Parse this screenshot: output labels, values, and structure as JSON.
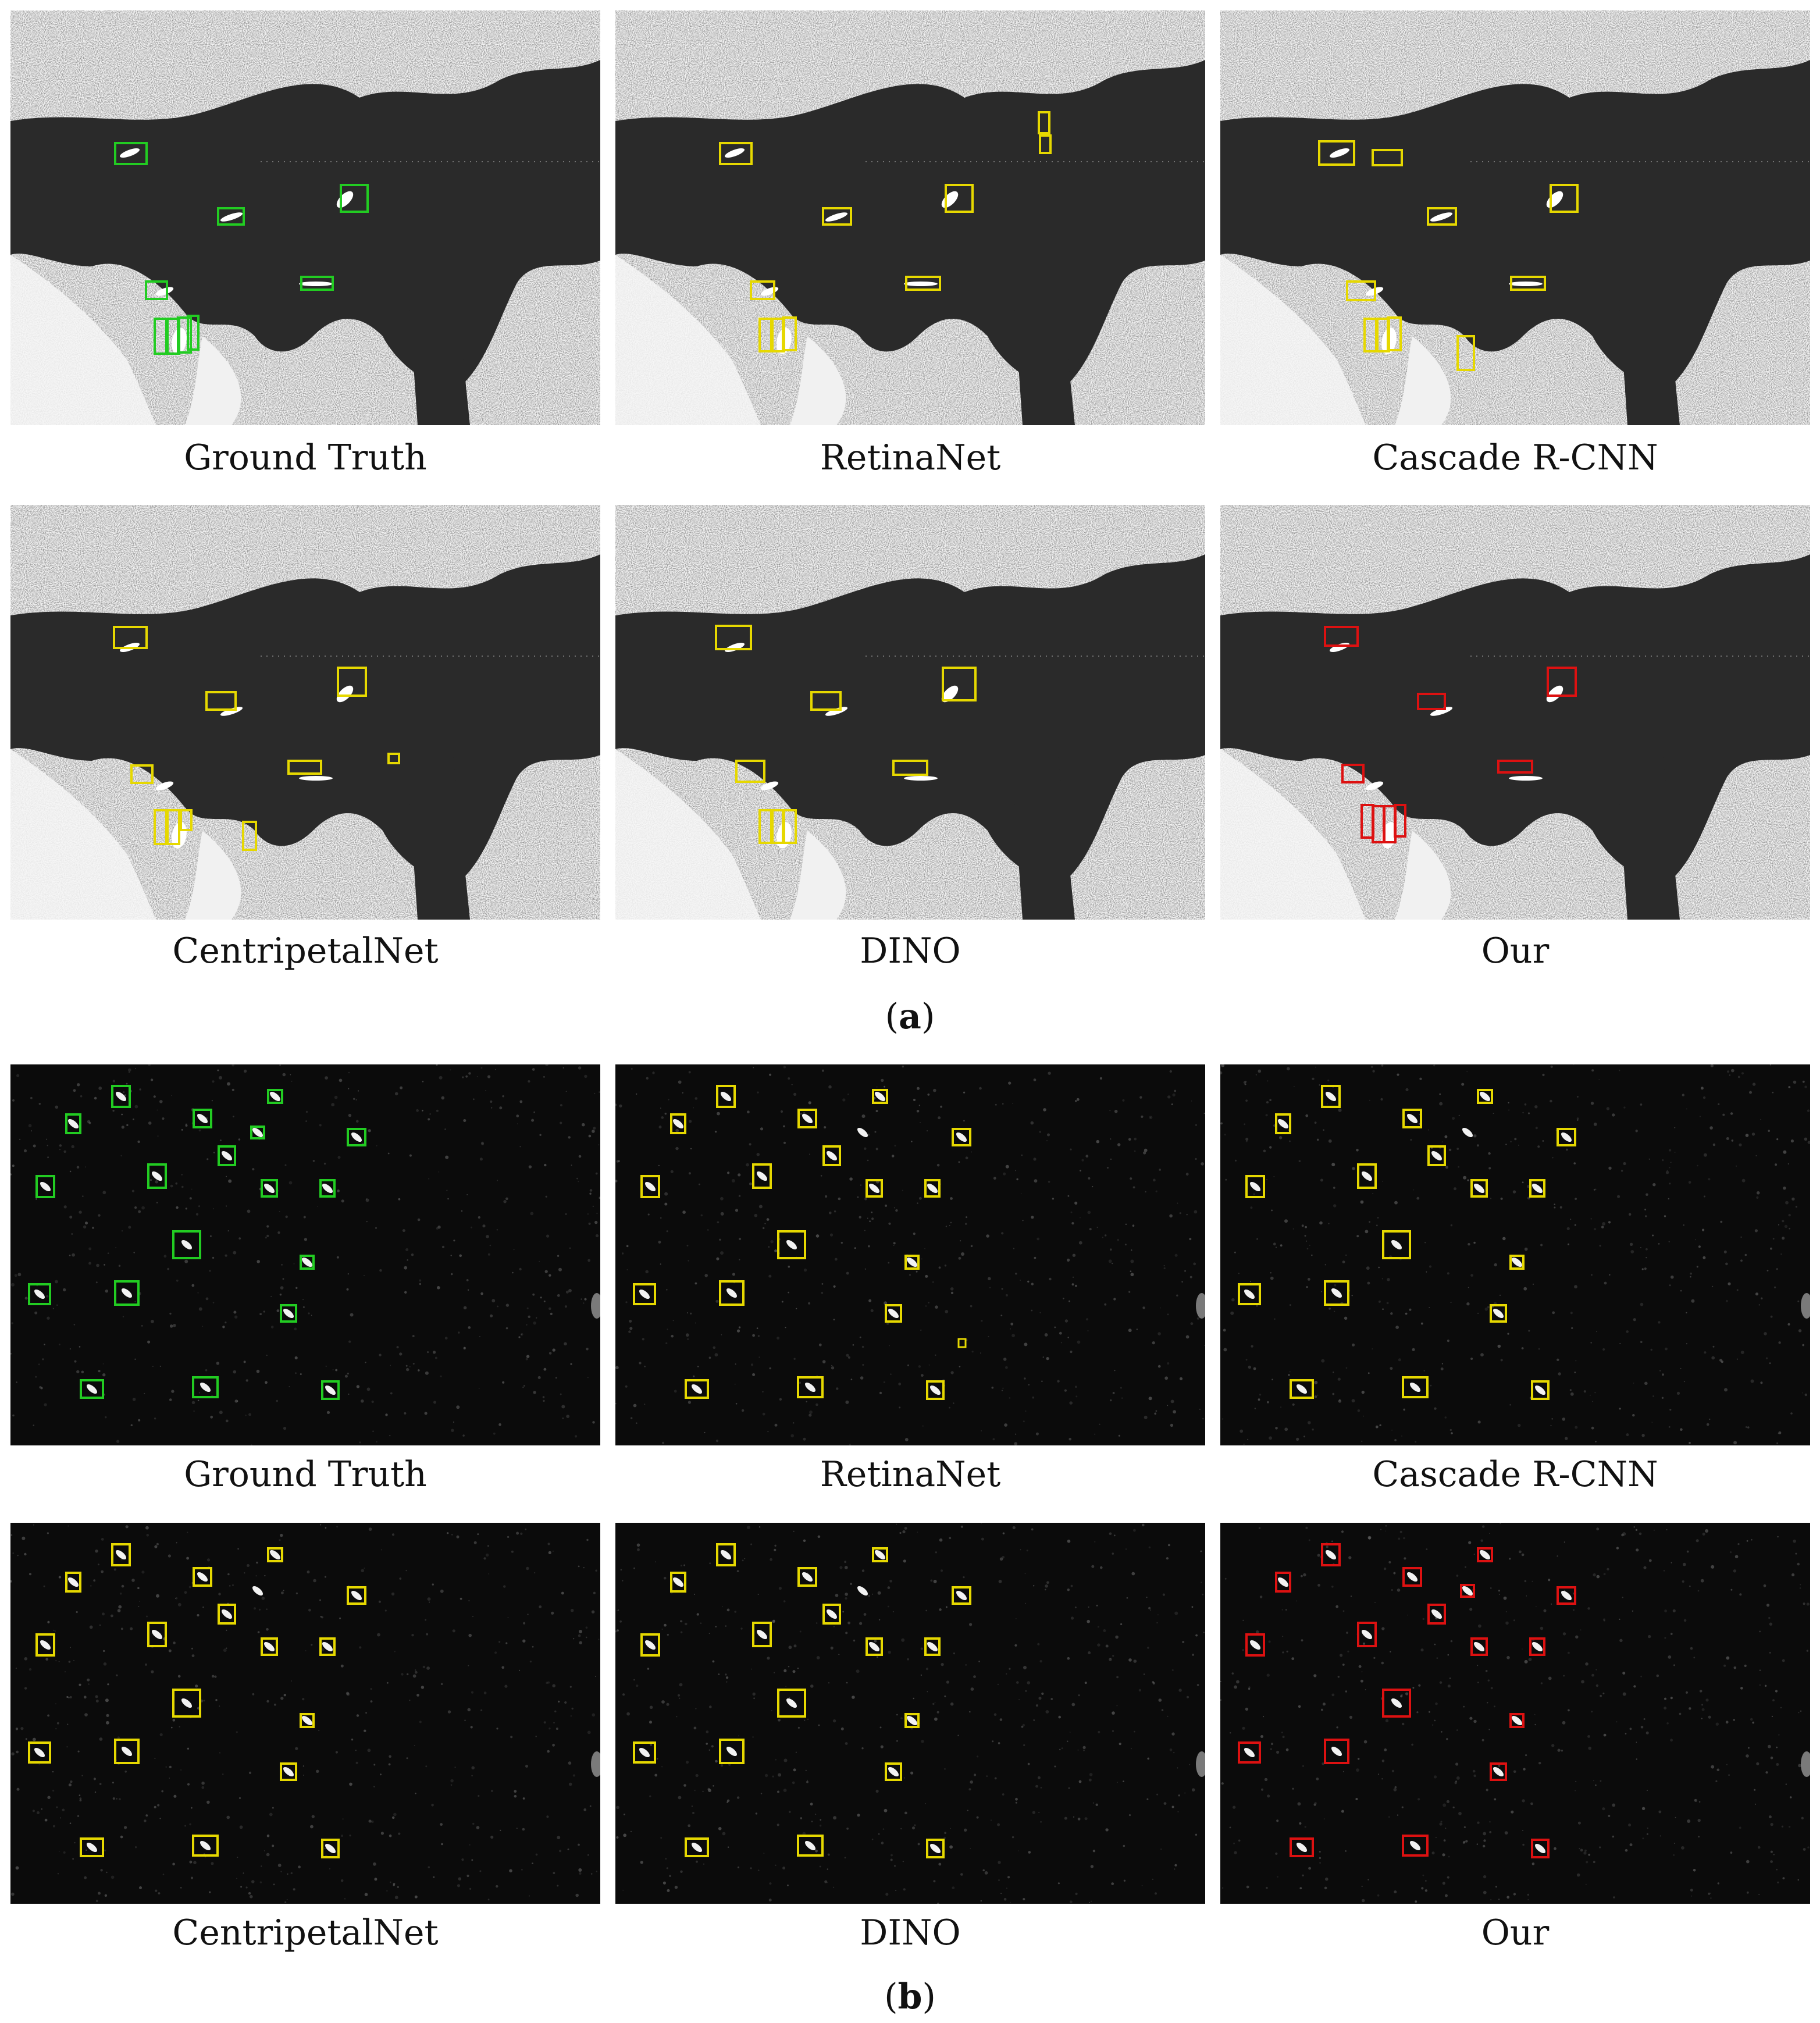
{
  "figure": {
    "subfigure_a": {
      "caption_letter": "a",
      "panels": [
        {
          "label": "Ground Truth",
          "box_color": "#22cc22"
        },
        {
          "label": "RetinaNet",
          "box_color": "#e6d800"
        },
        {
          "label": "Cascade R-CNN",
          "box_color": "#e6d800"
        },
        {
          "label": "CentripetalNet",
          "box_color": "#e6d800"
        },
        {
          "label": "DINO",
          "box_color": "#e6d800"
        },
        {
          "label": "Our",
          "box_color": "#dd1111"
        }
      ]
    },
    "subfigure_b": {
      "caption_letter": "b",
      "panels": [
        {
          "label": "Ground Truth",
          "box_color": "#22cc22"
        },
        {
          "label": "RetinaNet",
          "box_color": "#e6d800"
        },
        {
          "label": "Cascade R-CNN",
          "box_color": "#e6d800"
        },
        {
          "label": "CentripetalNet",
          "box_color": "#e6d800"
        },
        {
          "label": "DINO",
          "box_color": "#e6d800"
        },
        {
          "label": "Our",
          "box_color": "#dd1111"
        }
      ]
    }
  }
}
